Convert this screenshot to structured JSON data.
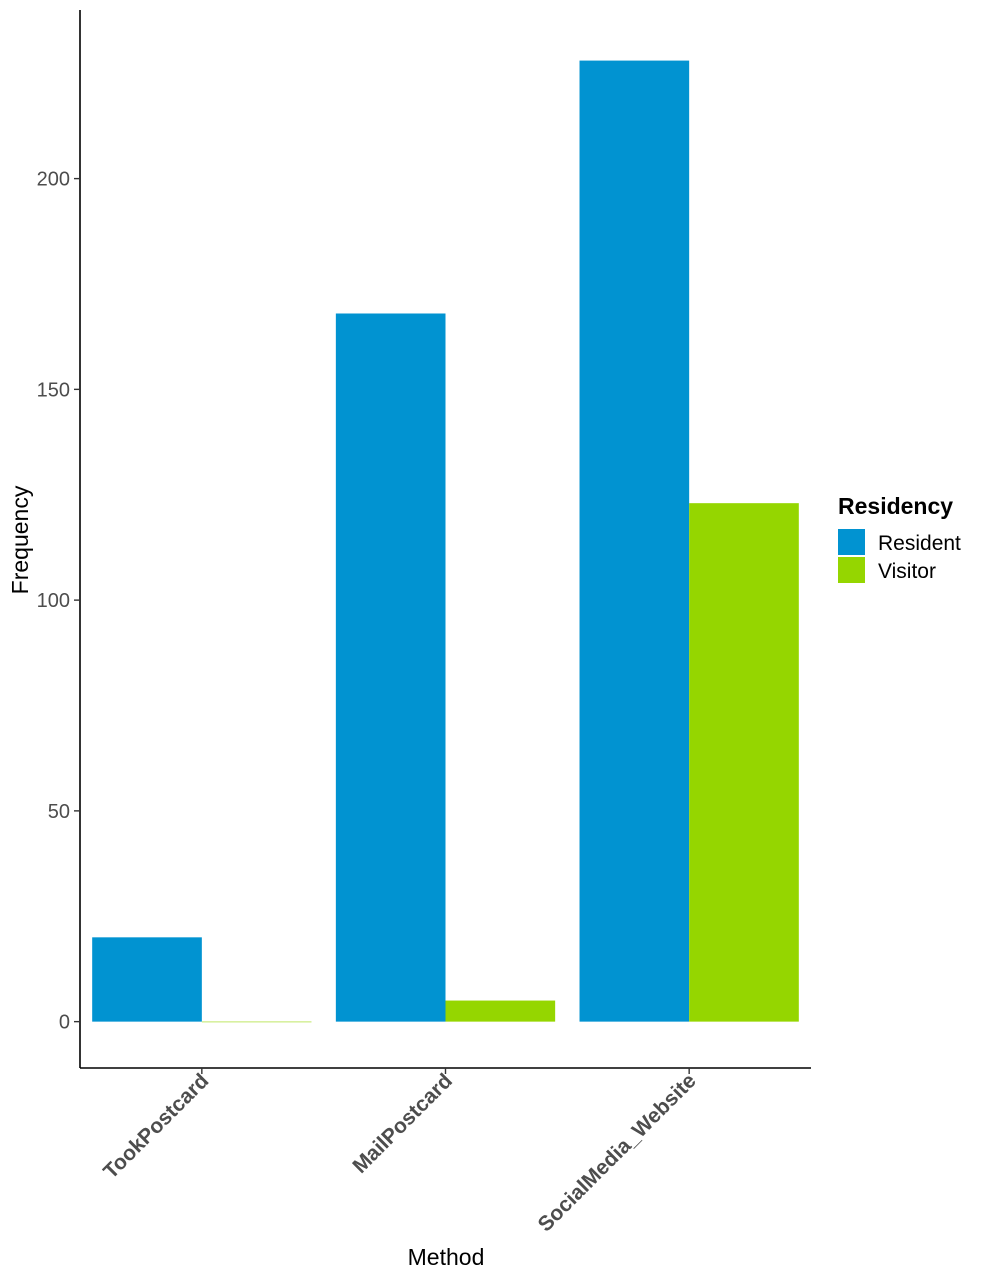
{
  "chart_data": {
    "type": "bar",
    "title": "",
    "xlabel": "Method",
    "ylabel": "Frequency",
    "categories": [
      "TookPostcard",
      "MailPostcard",
      "SocialMedia_Website"
    ],
    "series": [
      {
        "name": "Resident",
        "color": "#0193D1",
        "values": [
          20,
          168,
          228
        ]
      },
      {
        "name": "Visitor",
        "color": "#95D600",
        "values": [
          0,
          5,
          123
        ]
      }
    ],
    "ylim": [
      -11,
      240
    ],
    "yticks": [
      0,
      50,
      100,
      150,
      200
    ],
    "grid": false,
    "legend": {
      "title": "Residency",
      "placement": "right"
    }
  }
}
